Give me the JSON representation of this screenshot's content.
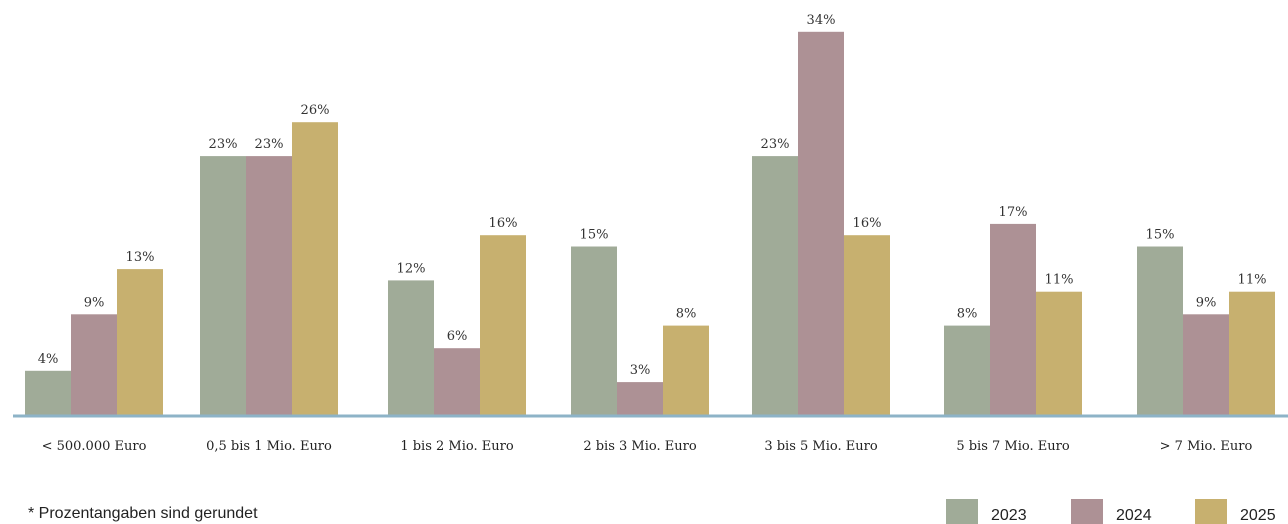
{
  "chart_data": {
    "type": "bar",
    "categories": [
      "< 500.000 Euro",
      "0,5 bis 1 Mio. Euro",
      "1 bis 2 Mio. Euro",
      "2 bis 3 Mio. Euro",
      "3 bis 5 Mio. Euro",
      "5 bis 7 Mio. Euro",
      "> 7 Mio. Euro"
    ],
    "series": [
      {
        "name": "2023",
        "values": [
          4,
          23,
          12,
          15,
          23,
          8,
          15
        ],
        "color": "#a0ab98"
      },
      {
        "name": "2024",
        "values": [
          9,
          23,
          6,
          3,
          34,
          17,
          9
        ],
        "color": "#ad9195"
      },
      {
        "name": "2025",
        "values": [
          13,
          26,
          16,
          8,
          16,
          11,
          11
        ],
        "color": "#c7b06f"
      }
    ],
    "value_suffix": "%",
    "ylim": [
      0,
      35
    ],
    "grid": false,
    "legend_position": "bottom-right",
    "axis_color": "#8db3c7"
  },
  "footnote": "* Prozentangaben sind gerundet"
}
